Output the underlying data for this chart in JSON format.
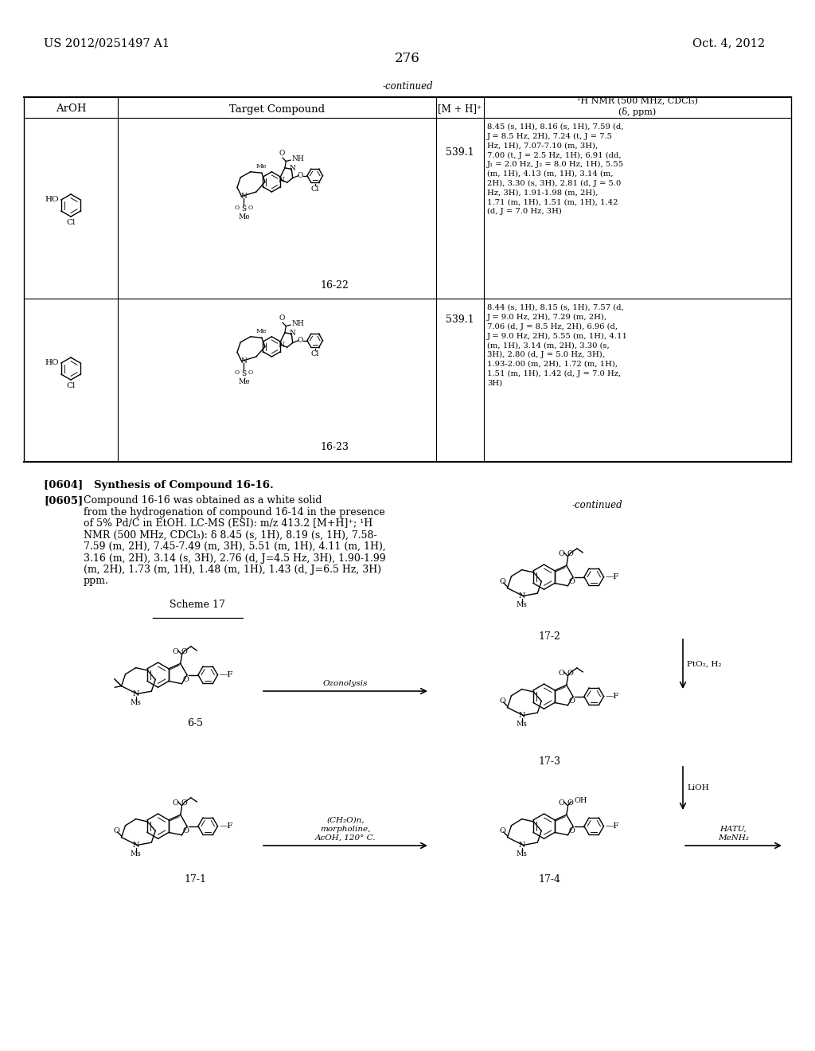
{
  "page_number": "276",
  "top_left": "US 2012/0251497 A1",
  "top_right": "Oct. 4, 2012",
  "background_color": "#ffffff",
  "table_continued_label": "-continued",
  "compound_16_22_mz": "539.1",
  "compound_16_22_nmr_lines": [
    "8.45 (s, 1H), 8.16 (s, 1H), 7.59 (d,",
    "J = 8.5 Hz, 2H), 7.24 (t, J = 7.5",
    "Hz, 1H), 7.07-7.10 (m, 3H),",
    "7.00 (t, J = 2.5 Hz, 1H), 6.91 (dd,",
    "J₁ = 2.0 Hz, J₂ = 8.0 Hz, 1H), 5.55",
    "(m, 1H), 4.13 (m, 1H), 3.14 (m,",
    "2H), 3.30 (s, 3H), 2.81 (d, J = 5.0",
    "Hz, 3H), 1.91-1.98 (m, 2H),",
    "1.71 (m, 1H), 1.51 (m, 1H), 1.42",
    "(d, J = 7.0 Hz, 3H)"
  ],
  "compound_16_22_label": "16-22",
  "compound_16_23_mz": "539.1",
  "compound_16_23_nmr_lines": [
    "8.44 (s, 1H), 8.15 (s, 1H), 7.57 (d,",
    "J = 9.0 Hz, 2H), 7.29 (m, 2H),",
    "7.06 (d, J = 8.5 Hz, 2H), 6.96 (d,",
    "J = 9.0 Hz, 2H), 5.55 (m, 1H), 4.11",
    "(m, 1H), 3.14 (m, 2H), 3.30 (s,",
    "3H), 2.80 (d, J = 5.0 Hz, 3H),",
    "1.93-2.00 (m, 2H), 1.72 (m, 1H),",
    "1.51 (m, 1H), 1.42 (d, J = 7.0 Hz,",
    "3H)"
  ],
  "compound_16_23_label": "16-23",
  "para_0604": "[0604]   Synthesis of Compound 16-16.",
  "para_0605_label": "[0605]",
  "para_0605_lines": [
    "Compound 16-16 was obtained as a white solid",
    "from the hydrogenation of compound 16-14 in the presence",
    "of 5% Pd/C in EtOH. LC-MS (ESI): m/z 413.2 [M+H]⁺; ¹H",
    "NMR (500 MHz, CDCl₃): δ 8.45 (s, 1H), 8.19 (s, 1H), 7.58-",
    "7.59 (m, 2H), 7.45-7.49 (m, 3H), 5.51 (m, 1H), 4.11 (m, 1H),",
    "3.16 (m, 2H), 3.14 (s, 3H), 2.76 (d, J=4.5 Hz, 3H), 1.90-1.99",
    "(m, 2H), 1.73 (m, 1H), 1.48 (m, 1H), 1.43 (d, J=6.5 Hz, 3H)",
    "ppm."
  ],
  "scheme17_label": "Scheme 17",
  "compound_65_label": "6-5",
  "compound_171_label": "17-1",
  "compound_172_label": "17-2",
  "compound_173_label": "17-3",
  "compound_174_label": "17-4",
  "arrow_ozonolysis": "Ozonolysis",
  "arrow_ch2o_lines": [
    "(CH₂O)n,",
    "morpholine,",
    "AcOH, 120° C."
  ],
  "arrow_pto2h2": "PtO₂, H₂",
  "arrow_lioh": "LiOH",
  "arrow_hatu_lines": [
    "HATU,",
    "MeNH₂"
  ],
  "continued_label2": "-continued",
  "font_size_header": 9.5,
  "font_size_body": 9.0,
  "font_size_nmr": 7.2,
  "font_size_page": 10.5
}
